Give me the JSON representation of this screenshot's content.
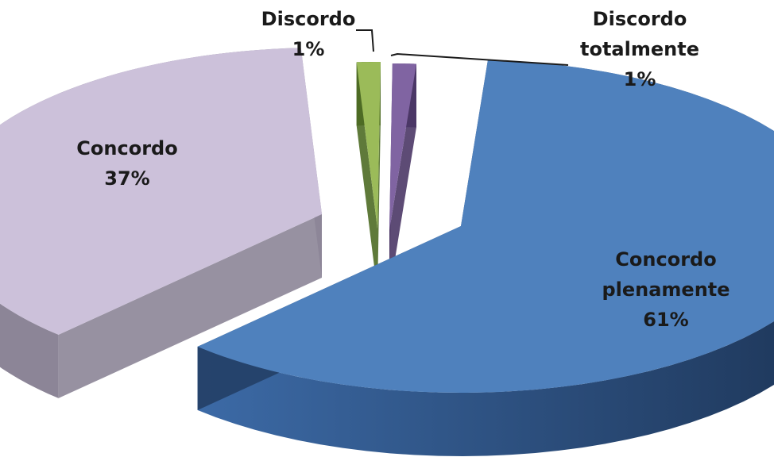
{
  "chart_data": {
    "type": "pie",
    "title": "",
    "series": [
      {
        "categories": [
          "Concordo plenamente",
          "Concordo",
          "Discordo",
          "Discordo totalmente"
        ],
        "values": [
          61,
          37,
          1,
          1
        ]
      }
    ],
    "slices": [
      {
        "label_lines": [
          "Concordo",
          "plenamente"
        ],
        "pct_label": "61%",
        "value": 61,
        "color": "#4f81bd",
        "dark": "#233f66"
      },
      {
        "label_lines": [
          "Concordo"
        ],
        "pct_label": "37%",
        "value": 37,
        "color": "#ccc1da",
        "dark": "#8c8597"
      },
      {
        "label_lines": [
          "Discordo"
        ],
        "pct_label": "1%",
        "value": 1,
        "color": "#9bbb59",
        "dark": "#4e6b25"
      },
      {
        "label_lines": [
          "Discordo",
          "totalmente"
        ],
        "pct_label": "1%",
        "value": 1,
        "color": "#8064a2",
        "dark": "#4b3766"
      }
    ],
    "style": "3d-exploded",
    "legend": "none"
  }
}
